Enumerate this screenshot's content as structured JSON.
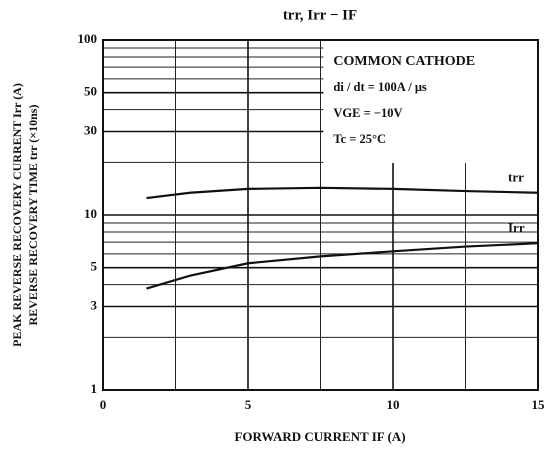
{
  "chart_data": {
    "type": "line",
    "title": "trr, Irr − IF",
    "xlabel": "FORWARD CURRENT  IF  (A)",
    "ylabel": [
      "PEAK REVERSE RECOVERY CURRENT  Irr  (A)",
      "REVERSE RECOVERY TIME  trr  (×10ns)"
    ],
    "annotations": [
      "COMMON CATHODE",
      "di / dt = 100A / μs",
      "VGE = −10V",
      "Tc = 25°C"
    ],
    "xlim": [
      0,
      15
    ],
    "xticks": [
      0,
      5,
      10,
      15
    ],
    "xgrid_minor": [
      2.5,
      7.5,
      12.5
    ],
    "ylim": [
      1,
      100
    ],
    "yticks": [
      1,
      3,
      5,
      10,
      30,
      50,
      100
    ],
    "ygrid_minor": [
      2,
      4,
      6,
      7,
      8,
      9,
      20,
      40,
      60,
      70,
      80,
      90
    ],
    "log_y": true,
    "grid": true,
    "x": [
      1.5,
      3,
      5,
      7.5,
      10,
      12.5,
      15
    ],
    "series": [
      {
        "name": "trr",
        "color": "#111111",
        "values": [
          12.5,
          13.4,
          14.1,
          14.3,
          14.1,
          13.7,
          13.4
        ]
      },
      {
        "name": "Irr",
        "color": "#111111",
        "values": [
          3.8,
          4.5,
          5.3,
          5.8,
          6.2,
          6.6,
          6.9
        ]
      }
    ]
  }
}
